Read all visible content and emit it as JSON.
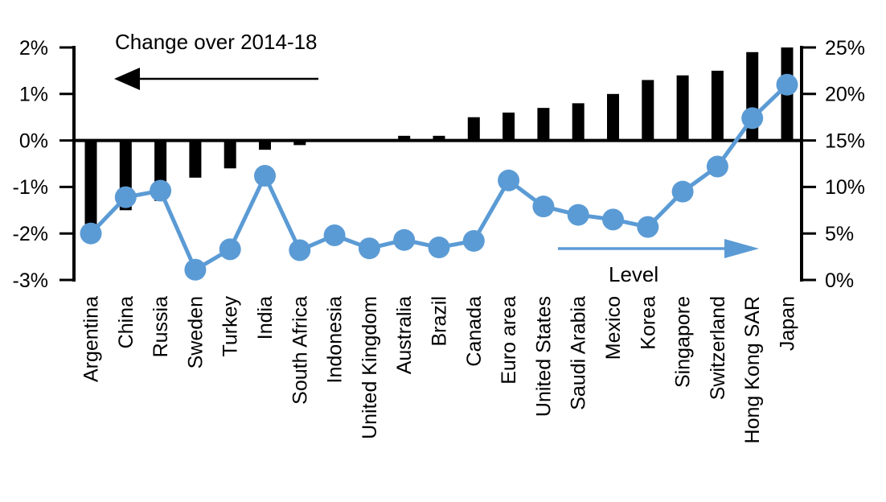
{
  "chart_data": {
    "type": "bar",
    "subtype": "dual-axis bar and line",
    "categories": [
      "Argentina",
      "China",
      "Russia",
      "Sweden",
      "Turkey",
      "India",
      "South Africa",
      "Indonesia",
      "United Kingdom",
      "Australia",
      "Brazil",
      "Canada",
      "Euro area",
      "United States",
      "Saudi Arabia",
      "Mexico",
      "Korea",
      "Singapore",
      "Switzerland",
      "Hong Kong SAR",
      "Japan"
    ],
    "series": [
      {
        "name": "Change over 2014-18",
        "type": "bar",
        "axis": "left",
        "color": "#000000",
        "values": [
          -1.8,
          -1.5,
          -1.3,
          -0.8,
          -0.6,
          -0.2,
          -0.1,
          0,
          0,
          0.1,
          0.1,
          0.5,
          0.6,
          0.7,
          0.8,
          1.0,
          1.3,
          1.4,
          1.5,
          1.9,
          2.0
        ]
      },
      {
        "name": "Level",
        "type": "line",
        "axis": "right",
        "color": "#5B9BD5",
        "values": [
          5.0,
          8.9,
          9.6,
          1.1,
          3.3,
          11.2,
          3.2,
          4.8,
          3.4,
          4.3,
          3.5,
          4.2,
          10.7,
          7.9,
          7.0,
          6.5,
          5.7,
          9.5,
          12.2,
          17.4,
          21.0
        ]
      }
    ],
    "left_axis": {
      "min": -3,
      "max": 2,
      "tick_step": 1,
      "tick_labels": [
        "2%",
        "1%",
        "0%",
        "-1%",
        "-2%",
        "-3%"
      ]
    },
    "right_axis": {
      "min": 0,
      "max": 25,
      "tick_step": 5,
      "tick_labels": [
        "25%",
        "20%",
        "15%",
        "10%",
        "5%",
        "0%"
      ]
    },
    "annotations": {
      "left_series_label": "Change over 2014-18",
      "left_arrow_direction": "left",
      "right_series_label": "Level",
      "right_arrow_direction": "right"
    },
    "grid": false,
    "legend": "in-plot labels with directional arrows"
  },
  "colors": {
    "bar": "#000000",
    "line": "#5B9BD5",
    "background": "#FFFFFF",
    "text": "#000000"
  }
}
